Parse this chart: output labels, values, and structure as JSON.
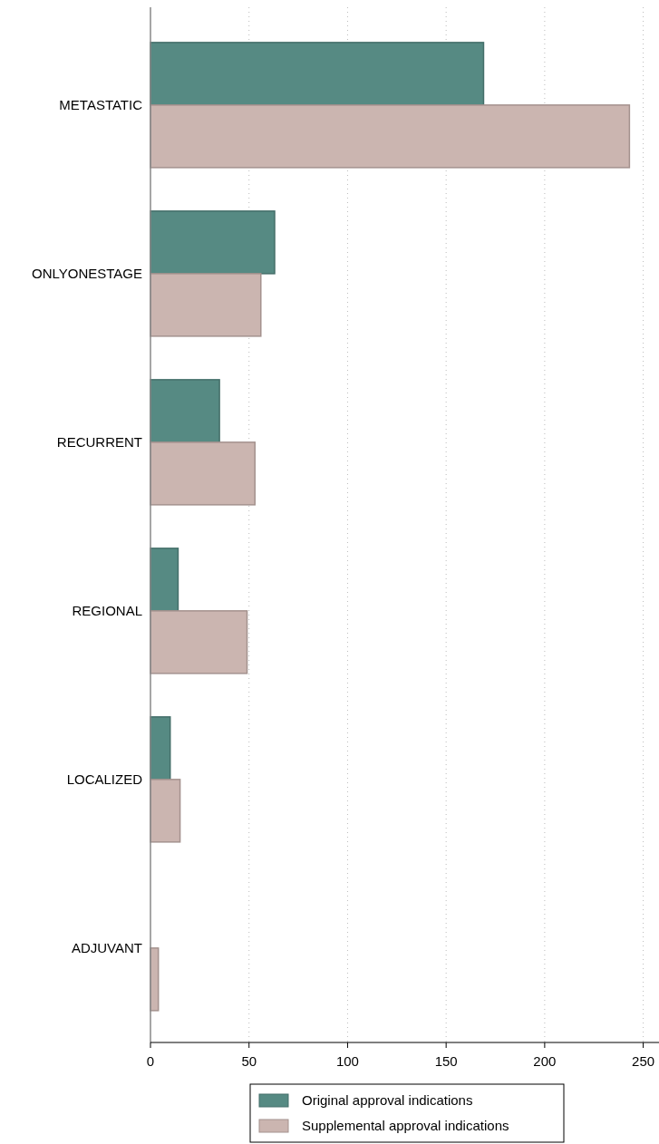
{
  "chart_data": {
    "type": "bar",
    "orientation": "horizontal",
    "categories": [
      "METASTATIC",
      "ONLYONESTAGE",
      "RECURRENT",
      "REGIONAL",
      "LOCALIZED",
      "ADJUVANT"
    ],
    "series": [
      {
        "name": "Original approval indications",
        "color": "#568a83",
        "values": [
          169,
          63,
          35,
          14,
          10,
          0
        ]
      },
      {
        "name": "Supplemental approval indications",
        "color": "#cbb5b0",
        "values": [
          243,
          56,
          53,
          49,
          15,
          4
        ]
      }
    ],
    "xlim": [
      0,
      258
    ],
    "xticks": [
      0,
      50,
      100,
      150,
      200,
      250
    ],
    "grid": "x",
    "legend": "bottom"
  }
}
